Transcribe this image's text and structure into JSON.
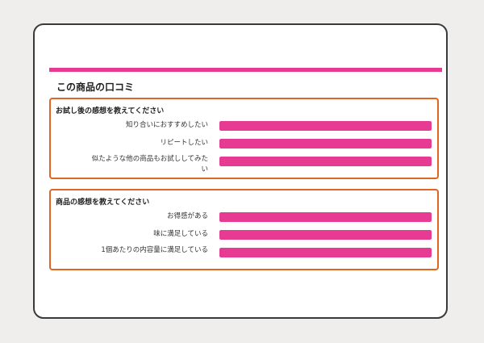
{
  "colors": {
    "accent": "#e63a93",
    "panel_border": "#e0661f",
    "frame_border": "#3a3a3a",
    "background": "#efeeec"
  },
  "title": "この商品の口コミ",
  "sections": [
    {
      "heading": "お試し後の感想を教えてください",
      "items": [
        {
          "label": "知り合いにおすすめしたい",
          "fill": 1.0
        },
        {
          "label": "リピートしたい",
          "fill": 1.0
        },
        {
          "label": "似たような他の商品もお試ししてみたい",
          "fill": 1.0
        }
      ]
    },
    {
      "heading": "商品の感想を教えてください",
      "items": [
        {
          "label": "お得感がある",
          "fill": 1.0
        },
        {
          "label": "味に満足している",
          "fill": 1.0
        },
        {
          "label": "1個あたりの内容量に満足している",
          "fill": 1.0
        }
      ]
    }
  ]
}
